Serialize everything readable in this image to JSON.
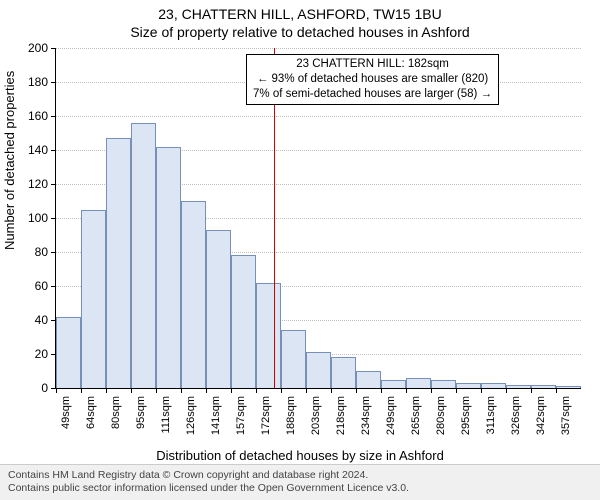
{
  "title_line1": "23, CHATTERN HILL, ASHFORD, TW15 1BU",
  "title_line2": "Size of property relative to detached houses in Ashford",
  "ylabel": "Number of detached properties",
  "xlabel": "Distribution of detached houses by size in Ashford",
  "callout": {
    "line1": "23 CHATTERN HILL: 182sqm",
    "line2": "← 93% of detached houses are smaller (820)",
    "line3": "7% of semi-detached houses are larger (58) →"
  },
  "footer": {
    "line1": "Contains HM Land Registry data © Crown copyright and database right 2024.",
    "line2": "Contains public sector information licensed under the Open Government Licence v3.0."
  },
  "chart": {
    "type": "histogram",
    "bar_fill": "#dbe5f4",
    "bar_stroke": "#7790b8",
    "background_color": "#ffffff",
    "grid_color": "#bfbfbf",
    "vline_color": "#d40000",
    "vline_x_index": 8.7,
    "ylim": [
      0,
      200
    ],
    "yticks": [
      0,
      20,
      40,
      60,
      80,
      100,
      120,
      140,
      160,
      180,
      200
    ],
    "xtick_labels": [
      "49sqm",
      "64sqm",
      "80sqm",
      "95sqm",
      "111sqm",
      "126sqm",
      "141sqm",
      "157sqm",
      "172sqm",
      "188sqm",
      "203sqm",
      "218sqm",
      "234sqm",
      "249sqm",
      "265sqm",
      "280sqm",
      "295sqm",
      "311sqm",
      "326sqm",
      "342sqm",
      "357sqm"
    ],
    "values": [
      42,
      105,
      147,
      156,
      142,
      110,
      93,
      78,
      62,
      34,
      21,
      18,
      10,
      5,
      6,
      5,
      3,
      3,
      2,
      2,
      1
    ],
    "title_fontsize": 14,
    "label_fontsize": 13,
    "tick_fontsize": 12,
    "xtick_fontsize": 11
  }
}
